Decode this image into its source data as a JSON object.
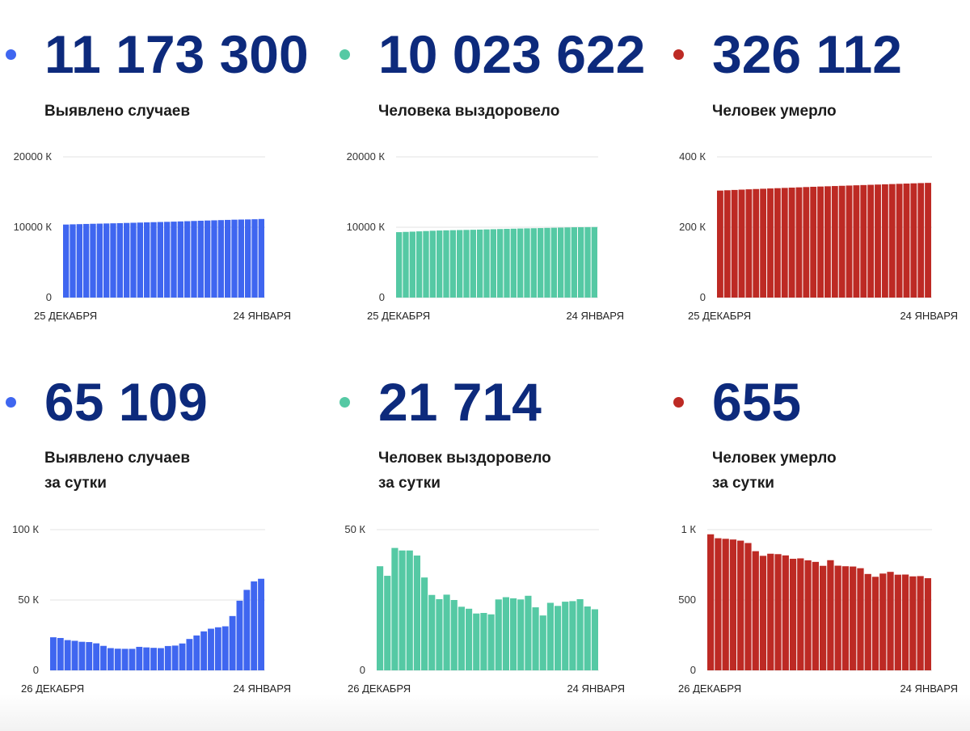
{
  "colors": {
    "cases": "#3f66f0",
    "recovered": "#55c9a4",
    "deaths": "#bd2a24",
    "number": "#0d2a7c"
  },
  "panels": [
    {
      "id": "total-cases",
      "color_key": "cases",
      "value": "11 173 300",
      "label_lines": [
        "Выявлено случаев"
      ],
      "chart_data": {
        "type": "bar",
        "y_ticks": [
          "20000 К",
          "10000 К",
          "0"
        ],
        "ylim": [
          0,
          20000
        ],
        "x_start_label": "25 ДЕКАБРЯ",
        "x_end_label": "24 ЯНВАРЯ",
        "values": [
          10381,
          10411,
          10438,
          10466,
          10491,
          10511,
          10533,
          10556,
          10582,
          10609,
          10635,
          10662,
          10690,
          10718,
          10743,
          10768,
          10795,
          10826,
          10858,
          10890,
          10923,
          10954,
          10981,
          11012,
          11043,
          11073,
          11091,
          11108,
          11134,
          11173
        ]
      }
    },
    {
      "id": "total-recovered",
      "color_key": "recovered",
      "value": "10 023 622",
      "label_lines": [
        "Человека выздоровело"
      ],
      "chart_data": {
        "type": "bar",
        "y_ticks": [
          "20000 К",
          "10000 К",
          "0"
        ],
        "ylim": [
          0,
          20000
        ],
        "x_start_label": "25 ДЕКАБРЯ",
        "x_end_label": "24 ЯНВАРЯ",
        "values": [
          9300,
          9337,
          9371,
          9413,
          9456,
          9500,
          9533,
          9557,
          9579,
          9600,
          9619,
          9639,
          9665,
          9690,
          9716,
          9742,
          9767,
          9792,
          9816,
          9838,
          9857,
          9879,
          9903,
          9922,
          9945,
          9970,
          9994,
          10006,
          10014,
          10024
        ]
      }
    },
    {
      "id": "total-deaths",
      "color_key": "deaths",
      "value": "326 112",
      "label_lines": [
        "Человек умерло"
      ],
      "chart_data": {
        "type": "bar",
        "y_ticks": [
          "400 К",
          "200 К",
          "0"
        ],
        "ylim": [
          0,
          400
        ],
        "x_start_label": "25 ДЕКАБРЯ",
        "x_end_label": "24 ЯНВАРЯ",
        "values": [
          304.2,
          305.1,
          306.0,
          306.9,
          307.8,
          308.6,
          309.4,
          310.2,
          311.0,
          311.8,
          312.6,
          313.4,
          314.2,
          315.0,
          315.7,
          316.4,
          317.1,
          317.8,
          318.5,
          319.2,
          319.9,
          320.6,
          321.3,
          322.0,
          322.7,
          323.4,
          324.1,
          324.8,
          325.5,
          326.1
        ]
      }
    },
    {
      "id": "daily-cases",
      "color_key": "cases",
      "value": "65 109",
      "label_lines": [
        "Выявлено случаев",
        "за сутки"
      ],
      "chart_data": {
        "type": "bar",
        "y_ticks": [
          "100 К",
          "50 К",
          "0"
        ],
        "ylim": [
          0,
          100
        ],
        "x_start_label": "26 ДЕКАБРЯ",
        "x_end_label": "24 ЯНВАРЯ",
        "values": [
          23.5,
          23.0,
          21.5,
          21.0,
          20.3,
          20.1,
          19.2,
          17.4,
          15.8,
          15.4,
          15.3,
          15.3,
          16.7,
          16.3,
          16.0,
          15.8,
          17.3,
          17.6,
          19.1,
          22.3,
          24.8,
          27.7,
          29.6,
          30.6,
          31.3,
          38.6,
          49.5,
          57.2,
          63.2,
          65.1
        ]
      }
    },
    {
      "id": "daily-recovered",
      "color_key": "recovered",
      "value": "21 714",
      "label_lines": [
        "Человек выздоровело",
        "за сутки"
      ],
      "chart_data": {
        "type": "bar",
        "y_ticks": [
          "50 К",
          "0"
        ],
        "ylim": [
          0,
          50
        ],
        "x_start_label": "26 ДЕКАБРЯ",
        "x_end_label": "24 ЯНВАРЯ",
        "values": [
          37.0,
          33.6,
          43.5,
          42.6,
          42.6,
          40.8,
          33.0,
          26.8,
          25.3,
          26.9,
          25.0,
          22.6,
          21.9,
          20.2,
          20.4,
          19.9,
          25.2,
          26.0,
          25.6,
          25.2,
          26.5,
          22.4,
          19.5,
          24.0,
          22.9,
          24.4,
          24.6,
          25.3,
          22.7,
          21.7
        ]
      }
    },
    {
      "id": "daily-deaths",
      "color_key": "deaths",
      "value": "655",
      "label_lines": [
        "Человек умерло",
        "за сутки"
      ],
      "chart_data": {
        "type": "bar",
        "y_ticks": [
          "1 К",
          "500",
          "0"
        ],
        "ylim": [
          0,
          1000
        ],
        "x_start_label": "26 ДЕКАБРЯ",
        "x_end_label": "24 ЯНВАРЯ",
        "values": [
          967,
          939,
          935,
          930,
          922,
          905,
          847,
          814,
          829,
          826,
          817,
          793,
          796,
          782,
          771,
          743,
          783,
          744,
          740,
          738,
          726,
          685,
          665,
          688,
          700,
          680,
          681,
          668,
          670,
          655
        ]
      }
    }
  ]
}
